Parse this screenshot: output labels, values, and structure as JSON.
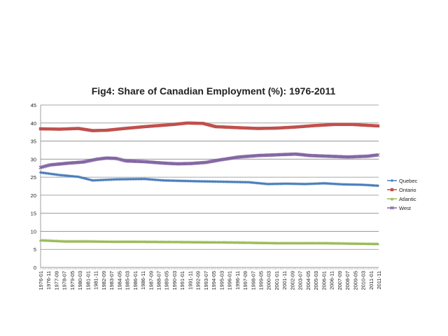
{
  "chart_data": {
    "type": "line",
    "title": "Fig4: Share of Canadian Employment (%): 1976-2011",
    "xlabel": "",
    "ylabel": "",
    "ylim": [
      0,
      45
    ],
    "yticks": [
      0,
      5,
      10,
      15,
      20,
      25,
      30,
      35,
      40,
      45
    ],
    "grid": true,
    "legend_position": "right",
    "x_start": "1976-01",
    "x_end": "2011-11",
    "x_tick_labels": [
      "1976-01",
      "1976-11",
      "1977-09",
      "1978-07",
      "1979-05",
      "1980-03",
      "1981-01",
      "1981-11",
      "1982-09",
      "1983-07",
      "1984-05",
      "1985-03",
      "1986-01",
      "1986-11",
      "1987-09",
      "1988-07",
      "1989-05",
      "1990-03",
      "1991-01",
      "1991-11",
      "1992-09",
      "1993-07",
      "1994-05",
      "1995-03",
      "1996-01",
      "1996-11",
      "1997-09",
      "1998-07",
      "1999-05",
      "2000-03",
      "2001-01",
      "2001-11",
      "2002-09",
      "2003-07",
      "2004-05",
      "2005-03",
      "2006-01",
      "2006-11",
      "2007-09",
      "2008-07",
      "2009-05",
      "2010-03",
      "2011-01",
      "2011-11"
    ],
    "series": [
      {
        "name": "Quebec",
        "color": "#4a7ebb",
        "marker": "diamond",
        "anchors": [
          [
            0,
            26.3
          ],
          [
            24,
            25.6
          ],
          [
            48,
            25.1
          ],
          [
            66,
            24.1
          ],
          [
            96,
            24.4
          ],
          [
            132,
            24.5
          ],
          [
            156,
            24.1
          ],
          [
            192,
            23.9
          ],
          [
            240,
            23.7
          ],
          [
            264,
            23.6
          ],
          [
            288,
            23.1
          ],
          [
            312,
            23.2
          ],
          [
            336,
            23.1
          ],
          [
            360,
            23.3
          ],
          [
            384,
            23.0
          ],
          [
            408,
            22.9
          ],
          [
            432,
            22.8
          ],
          [
            454,
            22.9
          ],
          [
            431,
            22.6
          ]
        ]
      },
      {
        "name": "Ontario",
        "color": "#c0504d",
        "marker": "square",
        "anchors": [
          [
            0,
            38.4
          ],
          [
            24,
            38.3
          ],
          [
            48,
            38.5
          ],
          [
            66,
            37.9
          ],
          [
            84,
            38.0
          ],
          [
            102,
            38.4
          ],
          [
            132,
            39.0
          ],
          [
            168,
            39.6
          ],
          [
            186,
            40.0
          ],
          [
            206,
            39.9
          ],
          [
            222,
            39.0
          ],
          [
            252,
            38.7
          ],
          [
            276,
            38.5
          ],
          [
            300,
            38.6
          ],
          [
            324,
            38.9
          ],
          [
            348,
            39.3
          ],
          [
            372,
            39.6
          ],
          [
            396,
            39.6
          ],
          [
            420,
            39.3
          ],
          [
            444,
            39.0
          ],
          [
            456,
            38.6
          ],
          [
            480,
            38.9
          ],
          [
            492,
            39.0
          ],
          [
            513,
            38.9
          ]
        ]
      },
      {
        "name": "Atlantic",
        "color": "#9bbb59",
        "marker": "triangle",
        "anchors": [
          [
            0,
            7.6
          ],
          [
            30,
            7.3
          ],
          [
            60,
            7.3
          ],
          [
            90,
            7.2
          ],
          [
            120,
            7.2
          ],
          [
            180,
            7.1
          ],
          [
            240,
            7.0
          ],
          [
            300,
            6.8
          ],
          [
            360,
            6.8
          ],
          [
            420,
            6.6
          ],
          [
            480,
            6.5
          ],
          [
            513,
            6.4
          ]
        ]
      },
      {
        "name": "West",
        "color": "#8064a2",
        "marker": "x",
        "anchors": [
          [
            0,
            27.7
          ],
          [
            12,
            28.4
          ],
          [
            36,
            28.9
          ],
          [
            54,
            29.2
          ],
          [
            72,
            30.0
          ],
          [
            84,
            30.3
          ],
          [
            96,
            30.2
          ],
          [
            108,
            29.5
          ],
          [
            132,
            29.3
          ],
          [
            156,
            28.9
          ],
          [
            174,
            28.7
          ],
          [
            192,
            28.8
          ],
          [
            210,
            29.1
          ],
          [
            228,
            29.8
          ],
          [
            252,
            30.6
          ],
          [
            276,
            31.0
          ],
          [
            300,
            31.2
          ],
          [
            324,
            31.4
          ],
          [
            342,
            31.0
          ],
          [
            366,
            30.8
          ],
          [
            390,
            30.6
          ],
          [
            414,
            30.8
          ],
          [
            438,
            31.4
          ],
          [
            462,
            31.8
          ],
          [
            486,
            32.0
          ],
          [
            504,
            31.9
          ],
          [
            513,
            32.1
          ]
        ]
      }
    ]
  }
}
